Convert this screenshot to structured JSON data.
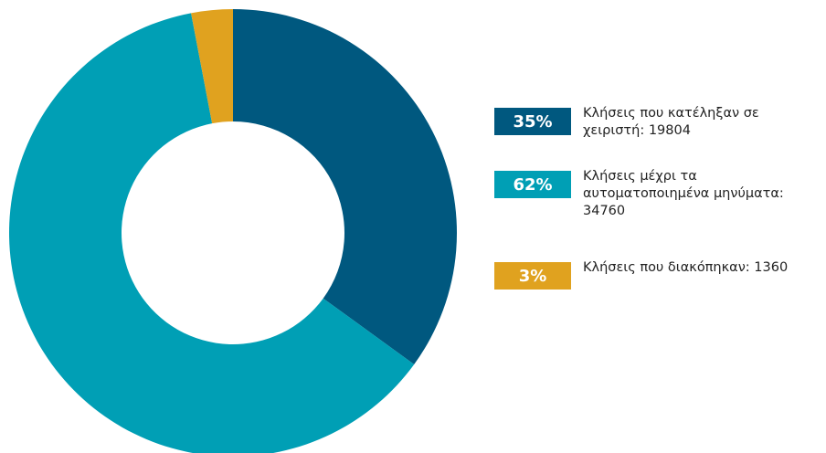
{
  "chart_data": {
    "type": "donut",
    "categories": [
      "Κλήσεις που κατέληξαν σε χειριστή: 19804",
      "Κλήσεις μέχρι τα αυτοματοποιημένα μηνύματα: 34760",
      "Κλήσεις που διακόπηκαν: 1360"
    ],
    "values": [
      35,
      62,
      3
    ],
    "value_labels": [
      "35%",
      "62%",
      "3%"
    ],
    "colors": [
      "#00587f",
      "#009fb5",
      "#e0a21f"
    ]
  }
}
